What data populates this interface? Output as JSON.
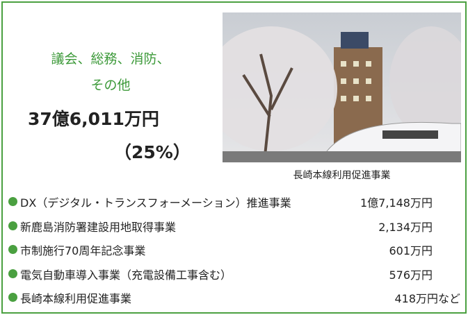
{
  "section": {
    "heading_lines": [
      "議会、総務、消防、",
      "その他"
    ],
    "amount": "37億6,011万円",
    "share": "（25%）"
  },
  "photo": {
    "caption": "長崎本線利用促進事業"
  },
  "items": [
    {
      "name": "DX（デジタル・トランスフォーメーション）推進事業",
      "amount": "1億7,148万円"
    },
    {
      "name": "新鹿島消防署建設用地取得事業",
      "amount": "2,134万円"
    },
    {
      "name": "市制施行70周年記念事業",
      "amount": "601万円"
    },
    {
      "name": "電気自動車導入事業（充電設備工事含む）",
      "amount": "576万円"
    },
    {
      "name": "長崎本線利用促進事業",
      "amount": "418万円など"
    }
  ]
}
